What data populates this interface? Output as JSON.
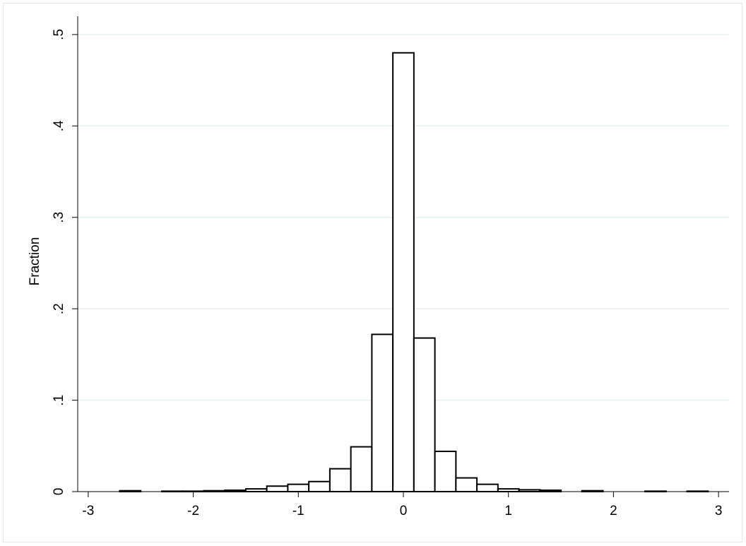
{
  "chart_data": {
    "type": "histogram",
    "y_label": "Fraction",
    "bins": [
      -2.7,
      -2.5,
      -2.3,
      -2.1,
      -1.9,
      -1.7,
      -1.5,
      -1.3,
      -1.1,
      -0.9,
      -0.7,
      -0.5,
      -0.3,
      -0.1,
      0.1,
      0.3,
      0.5,
      0.7,
      0.9,
      1.1,
      1.3,
      1.5,
      1.7,
      1.9,
      2.1,
      2.3,
      2.5,
      2.7,
      2.9
    ],
    "values": [
      0.001,
      0,
      0.0005,
      0.0005,
      0.001,
      0.0015,
      0.003,
      0.006,
      0.008,
      0.011,
      0.025,
      0.049,
      0.172,
      0.48,
      0.168,
      0.044,
      0.015,
      0.008,
      0.003,
      0.002,
      0.0015,
      0,
      0.001,
      0,
      0,
      0.0005,
      0,
      0.0005
    ],
    "color": "#ffffff",
    "edge_color": "#000000",
    "xlim": [
      -3.1,
      3.1
    ],
    "xticks": [
      -3,
      -2,
      -1,
      0,
      1,
      2,
      3
    ],
    "ylim": [
      0,
      0.52
    ],
    "yticks": [
      0,
      {
        "value": 0.1,
        "label": ".1"
      },
      {
        "value": 0.2,
        "label": ".2"
      },
      {
        "value": 0.3,
        "label": ".3"
      },
      {
        "value": 0.4,
        "label": ".4"
      },
      {
        "value": 0.5,
        "label": ".5"
      }
    ],
    "grid": true,
    "grid_color": "#e6eff1"
  }
}
